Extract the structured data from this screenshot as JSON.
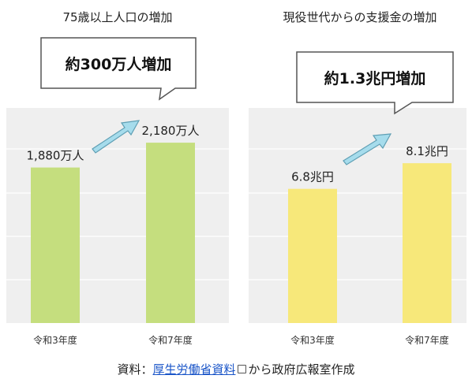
{
  "chart_data": [
    {
      "type": "bar",
      "title": "75歳以上人口の増加",
      "categories": [
        "令和3年度",
        "令和7年度"
      ],
      "values": [
        1880,
        2180
      ],
      "value_labels": [
        "1,880万人",
        "2,180万人"
      ],
      "unit": "万人",
      "callout": "約300万人増加",
      "ylim": [
        0,
        2600
      ],
      "grid": true,
      "bar_color": "#c5de7e"
    },
    {
      "type": "bar",
      "title": "現役世代からの支援金の増加",
      "categories": [
        "令和3年度",
        "令和7年度"
      ],
      "values": [
        6.8,
        8.1
      ],
      "value_labels": [
        "6.8兆円",
        "8.1兆円"
      ],
      "unit": "兆円",
      "callout": "約1.3兆円増加",
      "ylim": [
        0,
        10.9
      ],
      "grid": true,
      "bar_color": "#f7e87a"
    }
  ],
  "source": {
    "prefix": "資料：",
    "link_text": "厚生労働省資料",
    "link_icon": "external-link-icon",
    "suffix": "から政府広報室作成"
  },
  "colors": {
    "panel_bg": "#efefef",
    "grid": "#ffffff",
    "arrow_fill": "#a6dcec",
    "arrow_stroke": "#5f9fb4",
    "link": "#1a55c8"
  }
}
